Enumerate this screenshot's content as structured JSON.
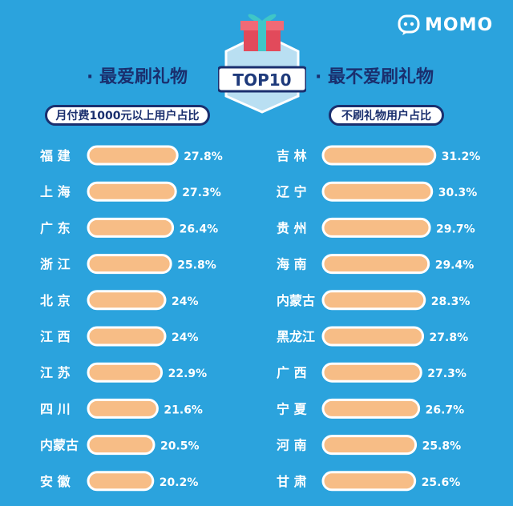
{
  "logo": {
    "text": "MOMO"
  },
  "badge": {
    "text": "TOP10"
  },
  "left": {
    "heading": "· 最爱刷礼物",
    "pill": "月付费1000元以上用户占比"
  },
  "right": {
    "heading": "· 最不爱刷礼物",
    "pill": "不刷礼物用户占比"
  },
  "colors": {
    "background": "#2ba3dd",
    "bar_fill": "#f7bd86",
    "bar_stroke": "#ffffff",
    "text": "#ffffff",
    "accent": "#1a2f6e"
  },
  "chart_data": [
    {
      "type": "bar",
      "orientation": "horizontal",
      "title": "月付费1000元以上用户占比",
      "categories": [
        "福 建",
        "上 海",
        "广 东",
        "浙 江",
        "北 京",
        "江 西",
        "江 苏",
        "四 川",
        "内蒙古",
        "安 徽"
      ],
      "values": [
        27.8,
        27.3,
        26.4,
        25.8,
        24,
        24,
        22.9,
        21.6,
        20.5,
        20.2
      ],
      "labels": [
        "27.8%",
        "27.3%",
        "26.4%",
        "25.8%",
        "24%",
        "24%",
        "22.9%",
        "21.6%",
        "20.5%",
        "20.2%"
      ]
    },
    {
      "type": "bar",
      "orientation": "horizontal",
      "title": "不刷礼物用户占比",
      "categories": [
        "吉 林",
        "辽 宁",
        "贵 州",
        "海 南",
        "内蒙古",
        "黑龙江",
        "广 西",
        "宁 夏",
        "河 南",
        "甘 肃"
      ],
      "values": [
        31.2,
        30.3,
        29.7,
        29.4,
        28.3,
        27.8,
        27.3,
        26.7,
        25.8,
        25.6
      ],
      "labels": [
        "31.2%",
        "30.3%",
        "29.7%",
        "29.4%",
        "28.3%",
        "27.8%",
        "27.3%",
        "26.7%",
        "25.8%",
        "25.6%"
      ]
    }
  ]
}
